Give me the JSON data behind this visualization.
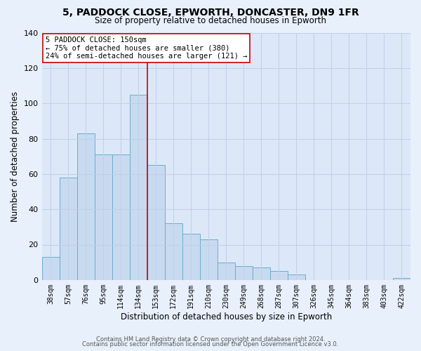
{
  "title": "5, PADDOCK CLOSE, EPWORTH, DONCASTER, DN9 1FR",
  "subtitle": "Size of property relative to detached houses in Epworth",
  "xlabel": "Distribution of detached houses by size in Epworth",
  "ylabel": "Number of detached properties",
  "bar_labels": [
    "38sqm",
    "57sqm",
    "76sqm",
    "95sqm",
    "114sqm",
    "134sqm",
    "153sqm",
    "172sqm",
    "191sqm",
    "210sqm",
    "230sqm",
    "249sqm",
    "268sqm",
    "287sqm",
    "307sqm",
    "326sqm",
    "345sqm",
    "364sqm",
    "383sqm",
    "403sqm",
    "422sqm"
  ],
  "bar_values": [
    13,
    58,
    83,
    71,
    71,
    105,
    65,
    32,
    26,
    23,
    10,
    8,
    7,
    5,
    3,
    0,
    0,
    0,
    0,
    0,
    1
  ],
  "bar_color": "#c8daf0",
  "bar_edge_color": "#6aadcf",
  "highlight_line_color": "#cc0000",
  "ylim": [
    0,
    140
  ],
  "yticks": [
    0,
    20,
    40,
    60,
    80,
    100,
    120,
    140
  ],
  "annotation_title": "5 PADDOCK CLOSE: 150sqm",
  "annotation_line1": "← 75% of detached houses are smaller (380)",
  "annotation_line2": "24% of semi-detached houses are larger (121) →",
  "footer1": "Contains HM Land Registry data © Crown copyright and database right 2024.",
  "footer2": "Contains public sector information licensed under the Open Government Licence v3.0.",
  "bg_color": "#e8f0fb",
  "plot_bg_color": "#dce8f8"
}
